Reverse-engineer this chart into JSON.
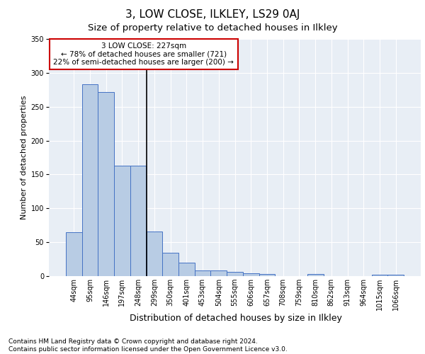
{
  "title": "3, LOW CLOSE, ILKLEY, LS29 0AJ",
  "subtitle": "Size of property relative to detached houses in Ilkley",
  "xlabel": "Distribution of detached houses by size in Ilkley",
  "ylabel": "Number of detached properties",
  "categories": [
    "44sqm",
    "95sqm",
    "146sqm",
    "197sqm",
    "248sqm",
    "299sqm",
    "350sqm",
    "401sqm",
    "453sqm",
    "504sqm",
    "555sqm",
    "606sqm",
    "657sqm",
    "708sqm",
    "759sqm",
    "810sqm",
    "862sqm",
    "913sqm",
    "964sqm",
    "1015sqm",
    "1066sqm"
  ],
  "values": [
    65,
    283,
    272,
    163,
    163,
    66,
    35,
    20,
    8,
    8,
    6,
    4,
    3,
    0,
    0,
    3,
    0,
    0,
    0,
    2,
    2
  ],
  "bar_color": "#b8cce4",
  "bar_edge_color": "#4472c4",
  "vline_x_index": 4.5,
  "vline_color": "#000000",
  "annotation_text": "3 LOW CLOSE: 227sqm\n← 78% of detached houses are smaller (721)\n22% of semi-detached houses are larger (200) →",
  "annotation_box_color": "#ffffff",
  "annotation_box_edge_color": "#cc0000",
  "ylim": [
    0,
    350
  ],
  "yticks": [
    0,
    50,
    100,
    150,
    200,
    250,
    300,
    350
  ],
  "background_color": "#e8eef5",
  "footer_text": "Contains HM Land Registry data © Crown copyright and database right 2024.\nContains public sector information licensed under the Open Government Licence v3.0.",
  "title_fontsize": 11,
  "subtitle_fontsize": 9.5,
  "xlabel_fontsize": 9,
  "ylabel_fontsize": 8,
  "tick_fontsize": 7,
  "annotation_fontsize": 7.5,
  "footer_fontsize": 6.5
}
